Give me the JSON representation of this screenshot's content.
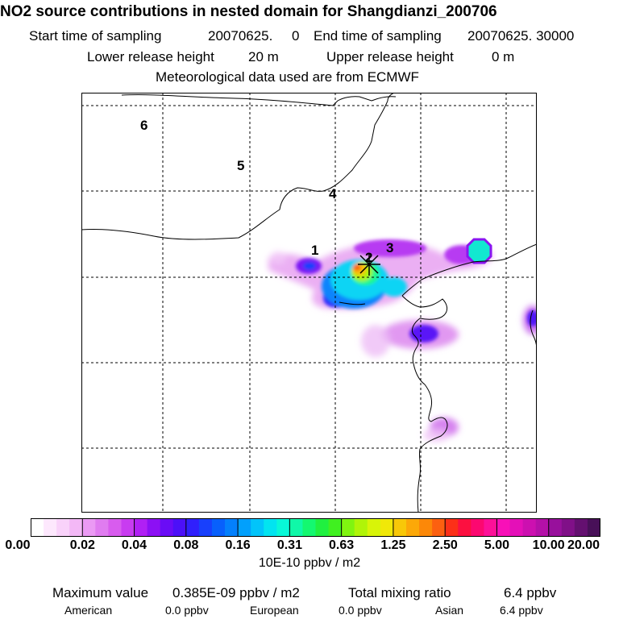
{
  "header": {
    "title": "NO2 source contributions in nested domain for Shangdianzi_200706",
    "start_label": "Start time of sampling",
    "start_value": "20070625.     0",
    "end_label": "End time of sampling",
    "end_value": "20070625. 30000",
    "lower_label": "Lower release height",
    "lower_value": "20 m",
    "upper_label": "Upper release height",
    "upper_value": "0 m",
    "met_line": "Meteorological data used are from ECMWF"
  },
  "map": {
    "region_labels": [
      "1",
      "2",
      "3",
      "4",
      "5",
      "6"
    ],
    "receptor_symbol": "+"
  },
  "colorbar": {
    "tick_labels": [
      "0.00",
      "0.02",
      "0.04",
      "0.08",
      "0.16",
      "0.31",
      "0.63",
      "1.25",
      "2.50",
      "5.00",
      "10.00",
      "20.00"
    ],
    "colors": [
      "#ffffff",
      "#fde8fd",
      "#f9d2fa",
      "#f3b8f6",
      "#eb9af4",
      "#e07cf0",
      "#d85cee",
      "#c83cf0",
      "#b020f4",
      "#8c10f4",
      "#6a0cf6",
      "#4c10f8",
      "#3020fc",
      "#1840fc",
      "#0860fc",
      "#0480fc",
      "#02a0fc",
      "#02c4fa",
      "#02e4f0",
      "#08f8d8",
      "#10f8a8",
      "#14f870",
      "#20f040",
      "#40f020",
      "#80f410",
      "#b0f408",
      "#d8f408",
      "#f0e808",
      "#f8c808",
      "#fca808",
      "#fc8808",
      "#fc6010",
      "#fc3018",
      "#fc1040",
      "#fc0870",
      "#fc1098",
      "#f810b8",
      "#e410b8",
      "#cc10b0",
      "#b410a8",
      "#98109c",
      "#801088",
      "#641070",
      "#481058"
    ],
    "units": "10E-10 ppbv / m2"
  },
  "stats": {
    "max_label": "Maximum value",
    "max_value": "0.385E-09 ppbv / m2",
    "total_label": "Total mixing ratio",
    "total_value": "6.4 ppbv",
    "sources": [
      {
        "name": "American",
        "value": "0.0 ppbv"
      },
      {
        "name": "European",
        "value": "0.0 ppbv"
      },
      {
        "name": "Asian",
        "value": "6.4 ppbv"
      }
    ]
  }
}
